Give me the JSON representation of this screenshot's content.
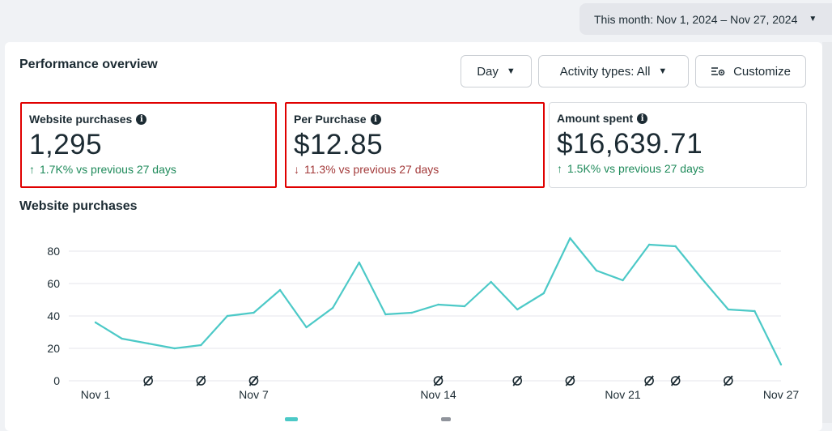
{
  "date_range": {
    "label": "This month: Nov 1, 2024 – Nov 27, 2024"
  },
  "panel": {
    "title": "Performance overview",
    "day_button": "Day",
    "activity_button": "Activity types: All",
    "customize_button": "Customize"
  },
  "metrics": [
    {
      "title": "Website purchases",
      "value": "1,295",
      "delta": "1.7K% vs previous 27 days",
      "direction": "up"
    },
    {
      "title": "Per Purchase",
      "value": "$12.85",
      "delta": "11.3% vs previous 27 days",
      "direction": "down"
    },
    {
      "title": "Amount spent",
      "value": "$16,639.71",
      "delta": "1.5K% vs previous 27 days",
      "direction": "up"
    }
  ],
  "arrows": {
    "up": "↑",
    "down": "↓"
  },
  "colors": {
    "line": "#4cc9c7",
    "up": "#1e8a5a",
    "down": "#a33a3a",
    "highlight": "#e00000"
  },
  "chart_data": {
    "type": "line",
    "title": "Website purchases",
    "x": [
      "Nov 1",
      "Nov 2",
      "Nov 3",
      "Nov 4",
      "Nov 5",
      "Nov 6",
      "Nov 7",
      "Nov 8",
      "Nov 9",
      "Nov 10",
      "Nov 11",
      "Nov 12",
      "Nov 13",
      "Nov 14",
      "Nov 15",
      "Nov 16",
      "Nov 17",
      "Nov 18",
      "Nov 19",
      "Nov 20",
      "Nov 21",
      "Nov 22",
      "Nov 23",
      "Nov 24",
      "Nov 25",
      "Nov 26",
      "Nov 27"
    ],
    "series": [
      {
        "values": [
          36,
          26,
          23,
          20,
          22,
          40,
          42,
          56,
          33,
          45,
          73,
          41,
          42,
          47,
          46,
          61,
          44,
          54,
          88,
          68,
          62,
          84,
          83,
          63,
          44,
          43,
          10
        ]
      }
    ],
    "x_tick_labels": [
      "Nov 1",
      "Nov 7",
      "Nov 14",
      "Nov 21",
      "Nov 27"
    ],
    "x_tick_indices": [
      0,
      6,
      13,
      20,
      26
    ],
    "y_ticks": [
      0,
      20,
      40,
      60,
      80
    ],
    "ylim": [
      0,
      90
    ],
    "grid": true,
    "annotation_marker_days": [
      2,
      4,
      6,
      13,
      16,
      18,
      21,
      22,
      24
    ]
  }
}
